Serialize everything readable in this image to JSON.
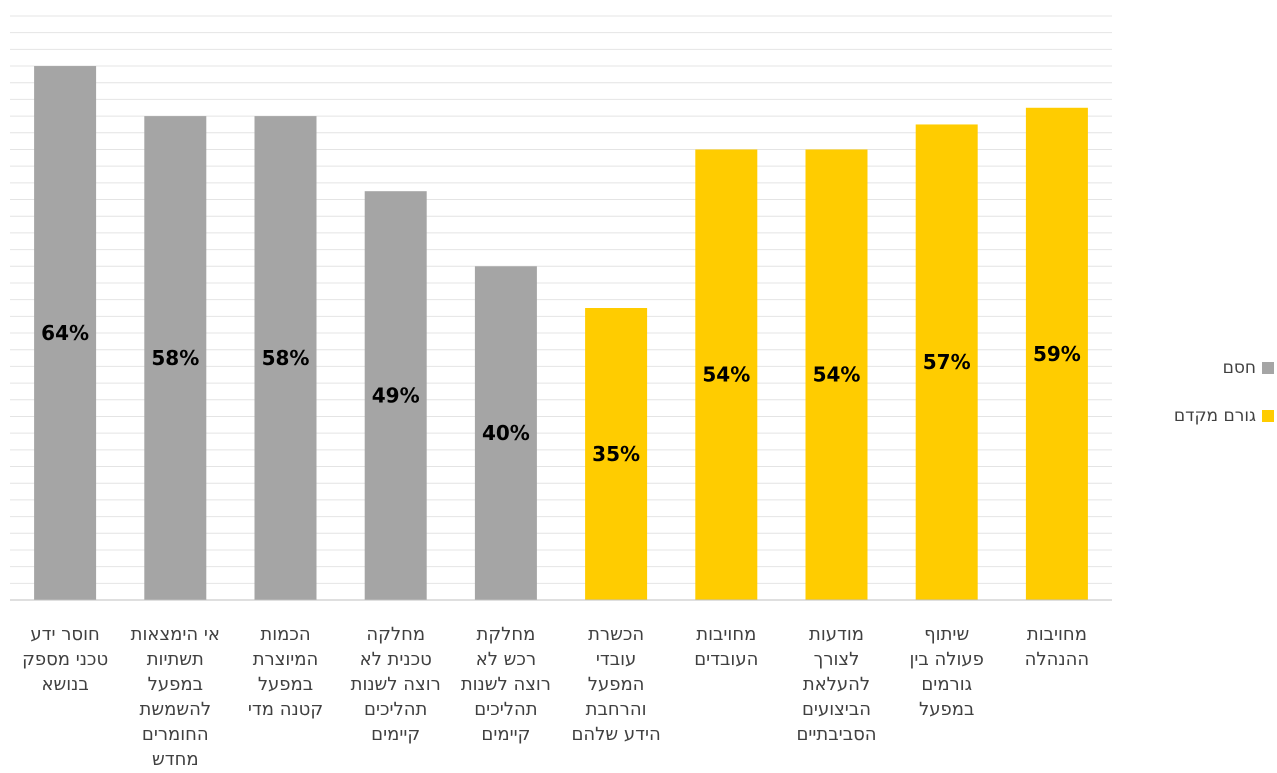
{
  "chart_data": {
    "type": "bar",
    "title": "",
    "xlabel": "",
    "ylabel": "",
    "ylim": [
      0,
      70
    ],
    "grid": true,
    "legend_position": "right",
    "categories": [
      [
        "מחויבות",
        "ההנהלה"
      ],
      [
        "שיתוף",
        "פעולה בין",
        "גורמים",
        "במפעל"
      ],
      [
        "מודעות",
        "לצורך",
        "להעלאת",
        "הביצועים",
        "הסביבתיים"
      ],
      [
        "מחויבות",
        "העובדים"
      ],
      [
        "הכשרת",
        "עובדי",
        "המפעל",
        "והרחבת",
        "הידע שלהם"
      ],
      [
        "מחלקת",
        "רכש לא",
        "רוצה לשנות",
        "תהליכים",
        "קיימים"
      ],
      [
        "מחלקה",
        "טכנית לא",
        "רוצה לשנות",
        "תהליכים",
        "קיימים"
      ],
      [
        "הכמות",
        "המיוצרת",
        "במפעל",
        "קטנה מדי"
      ],
      [
        "אי הימצאות",
        "תשתיות",
        "במפעל",
        "להשמשת",
        "החומרים",
        "מחדש"
      ],
      [
        "חוסר ידע",
        "טכני מספק",
        "בנושא"
      ]
    ],
    "values": [
      59,
      57,
      54,
      54,
      35,
      40,
      49,
      58,
      58,
      64
    ],
    "value_labels": [
      "59%",
      "57%",
      "54%",
      "54%",
      "35%",
      "40%",
      "49%",
      "58%",
      "58%",
      "64%"
    ],
    "series_index": [
      1,
      1,
      1,
      1,
      1,
      0,
      0,
      0,
      0,
      0
    ],
    "series": [
      {
        "name": "חסם",
        "color": "#a5a5a5"
      },
      {
        "name": "גורם מקדם",
        "color": "#ffcc00"
      }
    ]
  }
}
